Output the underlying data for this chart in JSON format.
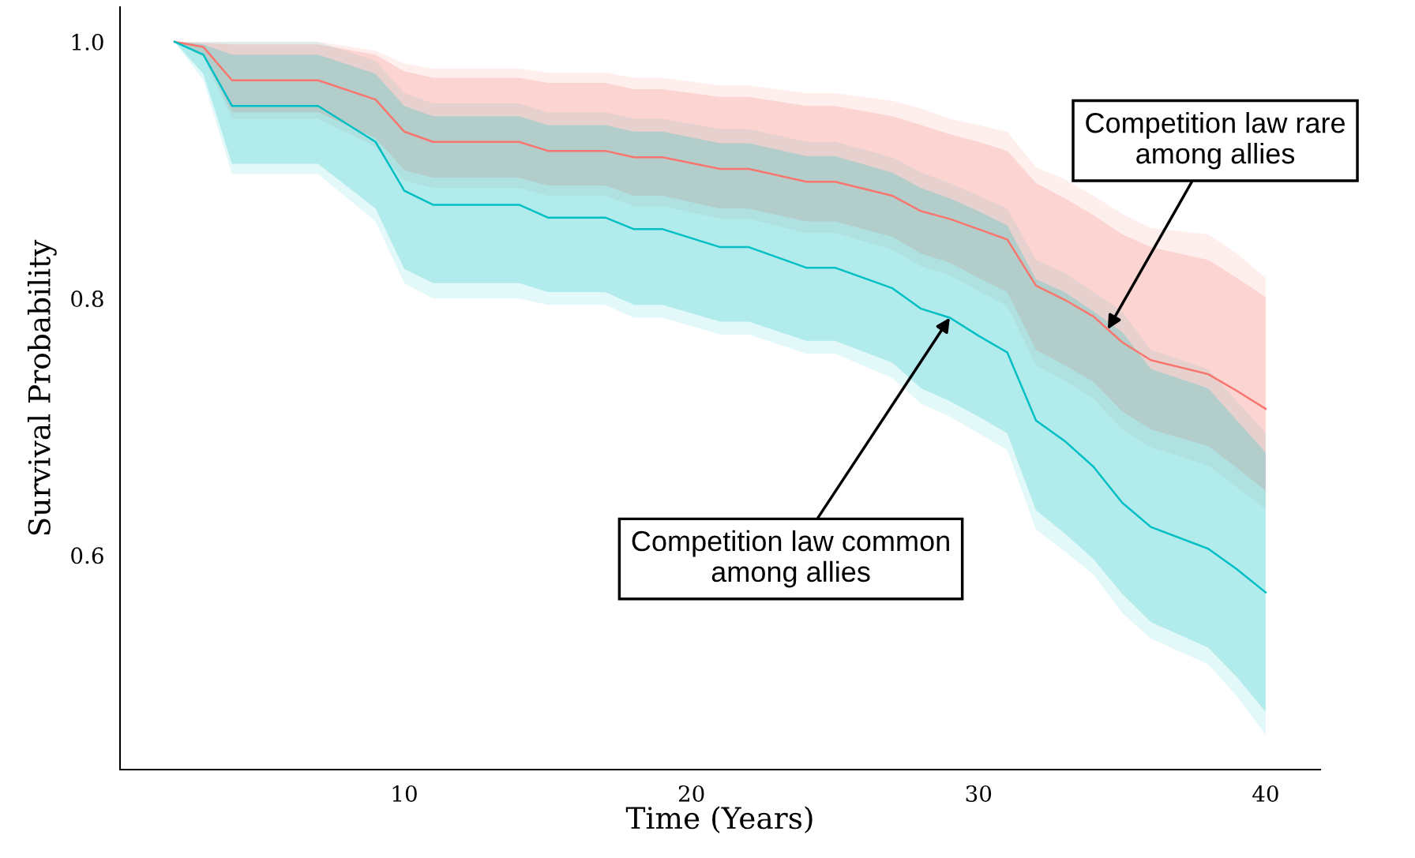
{
  "chart_data": {
    "type": "line",
    "xlabel": "Time (Years)",
    "ylabel": "Survival Probability",
    "x": [
      2,
      3,
      4,
      7,
      9,
      10,
      11,
      14,
      15,
      17,
      18,
      19,
      21,
      22,
      24,
      25,
      27,
      28,
      29,
      30,
      31,
      32,
      33,
      34,
      35,
      36,
      38,
      39,
      40
    ],
    "xlim": [
      0.1,
      41.9
    ],
    "xticks": [
      10,
      20,
      30,
      40
    ],
    "ylim": [
      0.433,
      1.027
    ],
    "yticks": [
      {
        "value": 0.6,
        "label": "0.6"
      },
      {
        "value": 0.8,
        "label": "0.8"
      },
      {
        "value": 1.0,
        "label": "1.0"
      }
    ],
    "grid": false,
    "legend": false,
    "series": [
      {
        "color": "#fbb4ae",
        "values": [
          null,
          null,
          null,
          null,
          null,
          null,
          null,
          null,
          null,
          null,
          null,
          null,
          null,
          null,
          null,
          null,
          null,
          null,
          null,
          null,
          null,
          null,
          null,
          null,
          null,
          null,
          null,
          null,
          null
        ],
        "upper": [
          1.0,
          1.0,
          1.0,
          1.0,
          0.993,
          0.983,
          0.979,
          0.979,
          0.976,
          0.976,
          0.972,
          0.972,
          0.966,
          0.966,
          0.96,
          0.96,
          0.954,
          0.948,
          0.94,
          0.935,
          0.93,
          0.902,
          0.893,
          0.88,
          0.866,
          0.855,
          0.85,
          0.835,
          0.816
        ],
        "lower": [
          1.0,
          0.988,
          0.94,
          0.94,
          0.918,
          0.892,
          0.886,
          0.886,
          0.88,
          0.88,
          0.872,
          0.872,
          0.862,
          0.862,
          0.851,
          0.851,
          0.838,
          0.825,
          0.818,
          0.806,
          0.794,
          0.748,
          0.736,
          0.722,
          0.698,
          0.684,
          0.67,
          0.653,
          0.636
        ]
      },
      {
        "color": "#7fdfe1",
        "values": [
          null,
          null,
          null,
          null,
          null,
          null,
          null,
          null,
          null,
          null,
          null,
          null,
          null,
          null,
          null,
          null,
          null,
          null,
          null,
          null,
          null,
          null,
          null,
          null,
          null,
          null,
          null,
          null,
          null
        ],
        "upper": [
          1.0,
          1.0,
          1.0,
          1.0,
          0.985,
          0.96,
          0.952,
          0.952,
          0.945,
          0.945,
          0.94,
          0.94,
          0.932,
          0.932,
          0.922,
          0.922,
          0.91,
          0.898,
          0.89,
          0.88,
          0.87,
          0.83,
          0.82,
          0.805,
          0.79,
          0.76,
          0.745,
          0.72,
          0.695
        ],
        "lower": [
          1.0,
          0.97,
          0.897,
          0.897,
          0.86,
          0.812,
          0.8,
          0.8,
          0.795,
          0.795,
          0.785,
          0.785,
          0.772,
          0.772,
          0.757,
          0.757,
          0.738,
          0.718,
          0.708,
          0.695,
          0.682,
          0.62,
          0.603,
          0.585,
          0.555,
          0.535,
          0.515,
          0.49,
          0.46
        ]
      },
      {
        "color": "#f8766d",
        "values": [
          1.0,
          0.996,
          0.97,
          0.97,
          0.955,
          0.93,
          0.922,
          0.922,
          0.915,
          0.915,
          0.91,
          0.91,
          0.901,
          0.901,
          0.891,
          0.891,
          0.88,
          0.868,
          0.862,
          0.854,
          0.846,
          0.81,
          0.799,
          0.786,
          0.766,
          0.752,
          0.741,
          0.728,
          0.714
        ],
        "lower": [
          1.0,
          0.99,
          0.945,
          0.945,
          0.925,
          0.9,
          0.894,
          0.894,
          0.888,
          0.888,
          0.88,
          0.88,
          0.87,
          0.87,
          0.86,
          0.86,
          0.848,
          0.835,
          0.828,
          0.816,
          0.805,
          0.76,
          0.748,
          0.735,
          0.712,
          0.698,
          0.685,
          0.668,
          0.65
        ],
        "upper": [
          1.0,
          0.999,
          0.998,
          0.998,
          0.99,
          0.977,
          0.972,
          0.972,
          0.968,
          0.968,
          0.963,
          0.963,
          0.957,
          0.957,
          0.95,
          0.95,
          0.942,
          0.935,
          0.928,
          0.922,
          0.915,
          0.89,
          0.878,
          0.865,
          0.85,
          0.84,
          0.83,
          0.816,
          0.801
        ]
      },
      {
        "color": "#00bfc4",
        "values": [
          1.0,
          0.99,
          0.95,
          0.95,
          0.922,
          0.884,
          0.873,
          0.873,
          0.863,
          0.863,
          0.854,
          0.854,
          0.84,
          0.84,
          0.824,
          0.824,
          0.808,
          0.792,
          0.785,
          0.771,
          0.758,
          0.705,
          0.689,
          0.669,
          0.641,
          0.622,
          0.605,
          0.589,
          0.571
        ],
        "lower": [
          1.0,
          0.975,
          0.905,
          0.905,
          0.87,
          0.823,
          0.812,
          0.812,
          0.805,
          0.805,
          0.795,
          0.795,
          0.782,
          0.782,
          0.767,
          0.767,
          0.75,
          0.73,
          0.72,
          0.708,
          0.695,
          0.635,
          0.617,
          0.597,
          0.57,
          0.548,
          0.528,
          0.505,
          0.478
        ],
        "upper": [
          1.0,
          0.998,
          0.99,
          0.99,
          0.975,
          0.95,
          0.942,
          0.942,
          0.935,
          0.935,
          0.93,
          0.93,
          0.921,
          0.921,
          0.911,
          0.911,
          0.898,
          0.886,
          0.878,
          0.868,
          0.857,
          0.815,
          0.805,
          0.79,
          0.774,
          0.745,
          0.73,
          0.705,
          0.68
        ]
      }
    ],
    "annotations": [
      {
        "text": "Competition law rare\namong allies",
        "x": 34.5,
        "y": 0.776
      },
      {
        "text": "Competition law common\namong allies",
        "x": 29,
        "y": 0.785
      }
    ]
  }
}
